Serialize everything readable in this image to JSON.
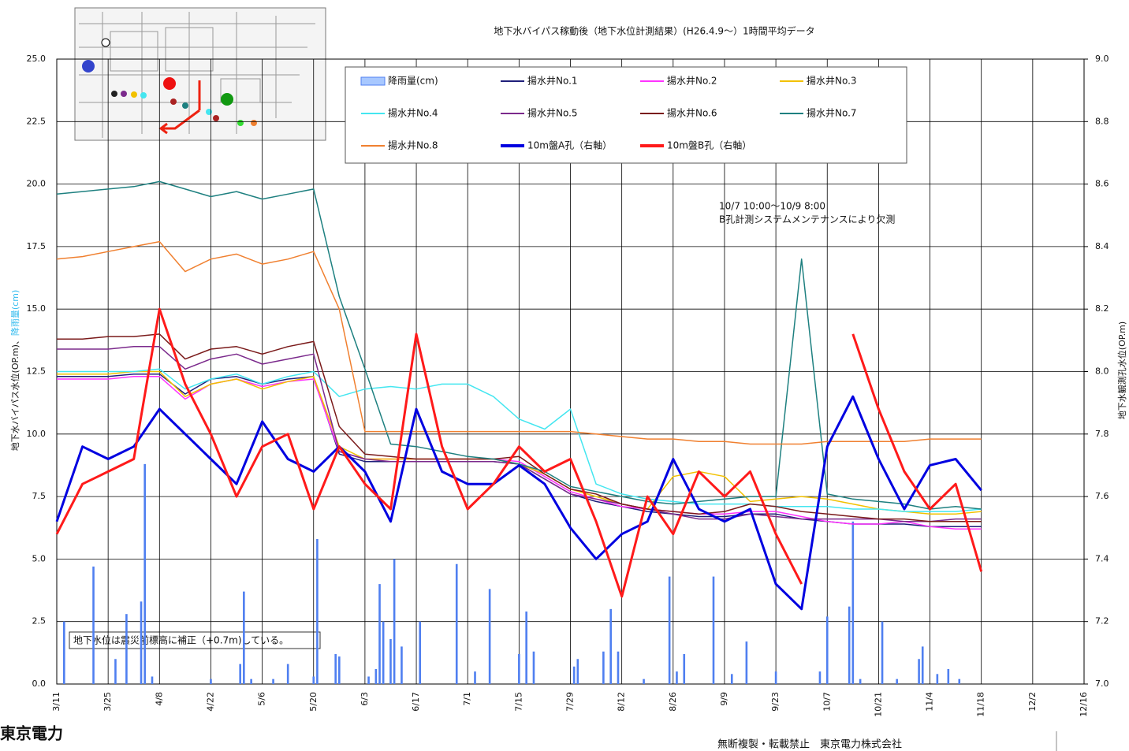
{
  "chart_data": {
    "type": "line",
    "title": "地下水バイパス稼動後（地下水位計測結果）(H26.4.9～）1時間平均データ",
    "ylabel": "地下水バイパス水位(OP.m)、",
    "ylabel_rain": "降雨量(cm)",
    "y2label": "地下水観測孔水位(OP.m)",
    "annotations": [
      "10/7 10:00～10/9 8:00",
      "B孔計測システムメンテナンスにより欠測"
    ],
    "note": "地下水位は震災前標高に補正（+0.7m)している。",
    "footer": "無断複製・転載禁止　東京電力株式会社",
    "logo": "東京電力",
    "grid": true,
    "xlim": [
      "3/11",
      "12/16"
    ],
    "xticks": [
      "3/11",
      "3/25",
      "4/8",
      "4/22",
      "5/6",
      "5/20",
      "6/3",
      "6/17",
      "7/1",
      "7/15",
      "7/29",
      "8/12",
      "8/26",
      "9/9",
      "9/23",
      "10/7",
      "10/21",
      "11/4",
      "11/18",
      "12/2",
      "12/16"
    ],
    "ylim": [
      0,
      25
    ],
    "yticks": [
      {
        "value": 0,
        "label": "0.0"
      },
      2.5,
      {
        "value": 5,
        "label": "5.0"
      },
      7.5,
      {
        "value": 10,
        "label": "10.0"
      },
      12.5,
      {
        "value": 15,
        "label": "15.0"
      },
      17.5,
      {
        "value": 20,
        "label": "20.0"
      },
      22.5,
      {
        "value": 25,
        "label": "25.0"
      }
    ],
    "y2lim": [
      7,
      9
    ],
    "y2ticks": [
      {
        "value": 7,
        "label": "7.0"
      },
      7.2,
      7.4,
      7.6,
      7.8,
      {
        "value": 8,
        "label": "8.0"
      },
      8.2,
      8.4,
      8.6,
      8.8,
      {
        "value": 9,
        "label": "9.0"
      }
    ],
    "x": [
      "3/11",
      "3/18",
      "3/25",
      "4/1",
      "4/8",
      "4/15",
      "4/22",
      "4/29",
      "5/6",
      "5/13",
      "5/20",
      "5/27",
      "6/3",
      "6/10",
      "6/17",
      "6/24",
      "7/1",
      "7/8",
      "7/15",
      "7/22",
      "7/29",
      "8/5",
      "8/12",
      "8/19",
      "8/26",
      "9/2",
      "9/9",
      "9/16",
      "9/23",
      "9/30",
      "10/7",
      "10/14",
      "10/21",
      "10/28",
      "11/4",
      "11/11",
      "11/18"
    ],
    "series": [
      {
        "name": "降雨量(cm)",
        "type": "bar",
        "color": "#4f7ff0",
        "x": [
          "3/13",
          "3/21",
          "3/27",
          "3/30",
          "4/3",
          "4/4",
          "4/6",
          "4/22",
          "4/30",
          "5/1",
          "5/3",
          "5/9",
          "5/13",
          "5/20",
          "5/21",
          "5/26",
          "5/27",
          "6/4",
          "6/6",
          "6/7",
          "6/8",
          "6/10",
          "6/11",
          "6/13",
          "6/18",
          "6/28",
          "7/3",
          "7/7",
          "7/15",
          "7/17",
          "7/19",
          "7/30",
          "7/31",
          "8/7",
          "8/9",
          "8/11",
          "8/18",
          "8/25",
          "8/27",
          "8/29",
          "9/6",
          "9/11",
          "9/15",
          "9/23",
          "10/5",
          "10/7",
          "10/13",
          "10/14",
          "10/16",
          "10/22",
          "10/26",
          "11/1",
          "11/2",
          "11/6",
          "11/9",
          "11/12"
        ],
        "values": [
          2.5,
          4.7,
          1.0,
          2.8,
          3.3,
          8.8,
          0.3,
          0.2,
          0.8,
          3.7,
          0.2,
          0.2,
          0.8,
          0.3,
          5.8,
          1.2,
          1.1,
          0.3,
          0.6,
          4.0,
          2.5,
          1.8,
          5.0,
          1.5,
          2.5,
          4.8,
          0.5,
          3.8,
          1.2,
          2.9,
          1.3,
          0.7,
          1.0,
          1.3,
          3.0,
          1.3,
          0.2,
          4.3,
          0.5,
          1.2,
          4.3,
          0.4,
          1.7,
          0.5,
          0.5,
          2.7,
          3.1,
          6.5,
          0.2,
          2.5,
          0.2,
          1.0,
          1.5,
          0.4,
          0.6,
          0.2
        ]
      },
      {
        "name": "揚水井No.1",
        "color": "#1f1f7a",
        "values": [
          12.3,
          12.3,
          12.3,
          12.4,
          12.4,
          11.6,
          12.2,
          12.3,
          12.0,
          12.2,
          12.3,
          9.2,
          8.9,
          8.9,
          8.9,
          8.9,
          8.9,
          8.9,
          8.8,
          8.2,
          7.6,
          7.3,
          7.1,
          6.9,
          6.8,
          6.7,
          6.7,
          6.8,
          6.8,
          6.6,
          6.5,
          6.4,
          6.4,
          6.4,
          6.3,
          6.3,
          6.3
        ]
      },
      {
        "name": "揚水井No.2",
        "color": "#ff33ff",
        "values": [
          12.2,
          12.2,
          12.2,
          12.3,
          12.3,
          11.4,
          12.0,
          12.2,
          11.9,
          12.1,
          12.2,
          9.3,
          9.0,
          9.0,
          9.0,
          9.0,
          9.0,
          9.0,
          8.9,
          8.3,
          7.7,
          7.4,
          7.1,
          7.0,
          6.9,
          6.8,
          6.8,
          6.9,
          6.9,
          6.7,
          6.5,
          6.4,
          6.4,
          6.5,
          6.3,
          6.2,
          6.2
        ]
      },
      {
        "name": "揚水井No.3",
        "color": "#f2c100",
        "values": [
          12.4,
          12.4,
          12.4,
          12.5,
          12.5,
          11.5,
          12.0,
          12.2,
          11.8,
          12.1,
          12.3,
          9.5,
          9.0,
          9.0,
          9.0,
          9.0,
          9.0,
          9.0,
          8.8,
          8.4,
          7.8,
          7.5,
          7.2,
          7.0,
          8.3,
          8.5,
          8.3,
          7.3,
          7.4,
          7.5,
          7.4,
          7.2,
          7.0,
          6.9,
          6.8,
          6.8,
          6.9
        ]
      },
      {
        "name": "揚水井No.4",
        "color": "#44e6f0",
        "values": [
          12.5,
          12.5,
          12.5,
          12.5,
          12.6,
          11.8,
          12.2,
          12.4,
          12.0,
          12.3,
          12.5,
          11.5,
          11.8,
          11.9,
          11.8,
          12.0,
          12.0,
          11.5,
          10.6,
          10.2,
          11.0,
          8.0,
          7.6,
          7.4,
          7.3,
          7.2,
          7.2,
          7.2,
          7.1,
          7.1,
          7.1,
          7.0,
          7.0,
          6.9,
          6.9,
          6.9,
          7.0
        ]
      },
      {
        "name": "揚水井No.5",
        "color": "#7b2a8c",
        "values": [
          13.4,
          13.4,
          13.4,
          13.5,
          13.5,
          12.6,
          13.0,
          13.2,
          12.8,
          13.0,
          13.2,
          9.3,
          9.0,
          8.9,
          8.9,
          8.9,
          8.9,
          8.9,
          8.8,
          8.2,
          7.6,
          7.4,
          7.2,
          7.0,
          6.8,
          6.6,
          6.6,
          6.8,
          6.7,
          6.6,
          6.6,
          6.6,
          6.6,
          6.5,
          6.5,
          6.6,
          6.6
        ]
      },
      {
        "name": "揚水井No.6",
        "color": "#7a1a1a",
        "values": [
          13.8,
          13.8,
          13.9,
          13.9,
          14.0,
          13.0,
          13.4,
          13.5,
          13.2,
          13.5,
          13.7,
          10.3,
          9.2,
          9.1,
          9.0,
          9.0,
          9.0,
          9.0,
          9.1,
          8.4,
          7.8,
          7.6,
          7.2,
          7.0,
          6.9,
          6.8,
          6.9,
          7.2,
          7.1,
          6.9,
          6.8,
          6.7,
          6.6,
          6.6,
          6.5,
          6.5,
          6.5
        ]
      },
      {
        "name": "揚水井No.7",
        "color": "#1e8080",
        "values": [
          19.6,
          19.7,
          19.8,
          19.9,
          20.1,
          19.8,
          19.5,
          19.7,
          19.4,
          19.6,
          19.8,
          15.5,
          12.6,
          9.6,
          9.5,
          9.3,
          9.1,
          9.0,
          8.8,
          8.5,
          7.9,
          7.7,
          7.5,
          7.3,
          7.2,
          7.3,
          7.4,
          7.5,
          7.5,
          17.0,
          7.6,
          7.4,
          7.3,
          7.2,
          7.0,
          7.1,
          7.0
        ]
      },
      {
        "name": "揚水井No.8",
        "color": "#f08030",
        "values": [
          17.0,
          17.1,
          17.3,
          17.5,
          17.7,
          16.5,
          17.0,
          17.2,
          16.8,
          17.0,
          17.3,
          15.0,
          10.1,
          10.1,
          10.1,
          10.1,
          10.1,
          10.1,
          10.1,
          10.1,
          10.1,
          10.0,
          9.9,
          9.8,
          9.8,
          9.7,
          9.7,
          9.6,
          9.6,
          9.6,
          9.7,
          9.7,
          9.7,
          9.7,
          9.8,
          9.8,
          9.8
        ]
      },
      {
        "name": "10m盤A孔（右軸）",
        "color": "#0000e0",
        "axis": "y2",
        "values": [
          7.52,
          7.76,
          7.72,
          7.76,
          7.88,
          7.8,
          7.72,
          7.64,
          7.84,
          7.72,
          7.68,
          7.76,
          7.68,
          7.52,
          7.88,
          7.68,
          7.64,
          7.64,
          7.7,
          7.64,
          7.5,
          7.4,
          7.48,
          7.52,
          7.72,
          7.56,
          7.52,
          7.56,
          7.32,
          7.24,
          7.76,
          7.92,
          7.72,
          7.56,
          7.7,
          7.72,
          7.62
        ]
      },
      {
        "name": "10m盤B孔（右軸）",
        "color": "#ff1a1a",
        "axis": "y2",
        "values": [
          7.48,
          7.64,
          7.68,
          7.72,
          8.2,
          7.96,
          7.8,
          7.6,
          7.76,
          7.8,
          7.56,
          7.76,
          7.64,
          7.56,
          8.12,
          7.76,
          7.56,
          7.64,
          7.76,
          7.68,
          7.72,
          7.52,
          7.28,
          7.6,
          7.48,
          7.68,
          7.6,
          7.68,
          7.48,
          7.32,
          null,
          8.12,
          7.88,
          7.68,
          7.56,
          7.64,
          7.36
        ]
      }
    ]
  }
}
